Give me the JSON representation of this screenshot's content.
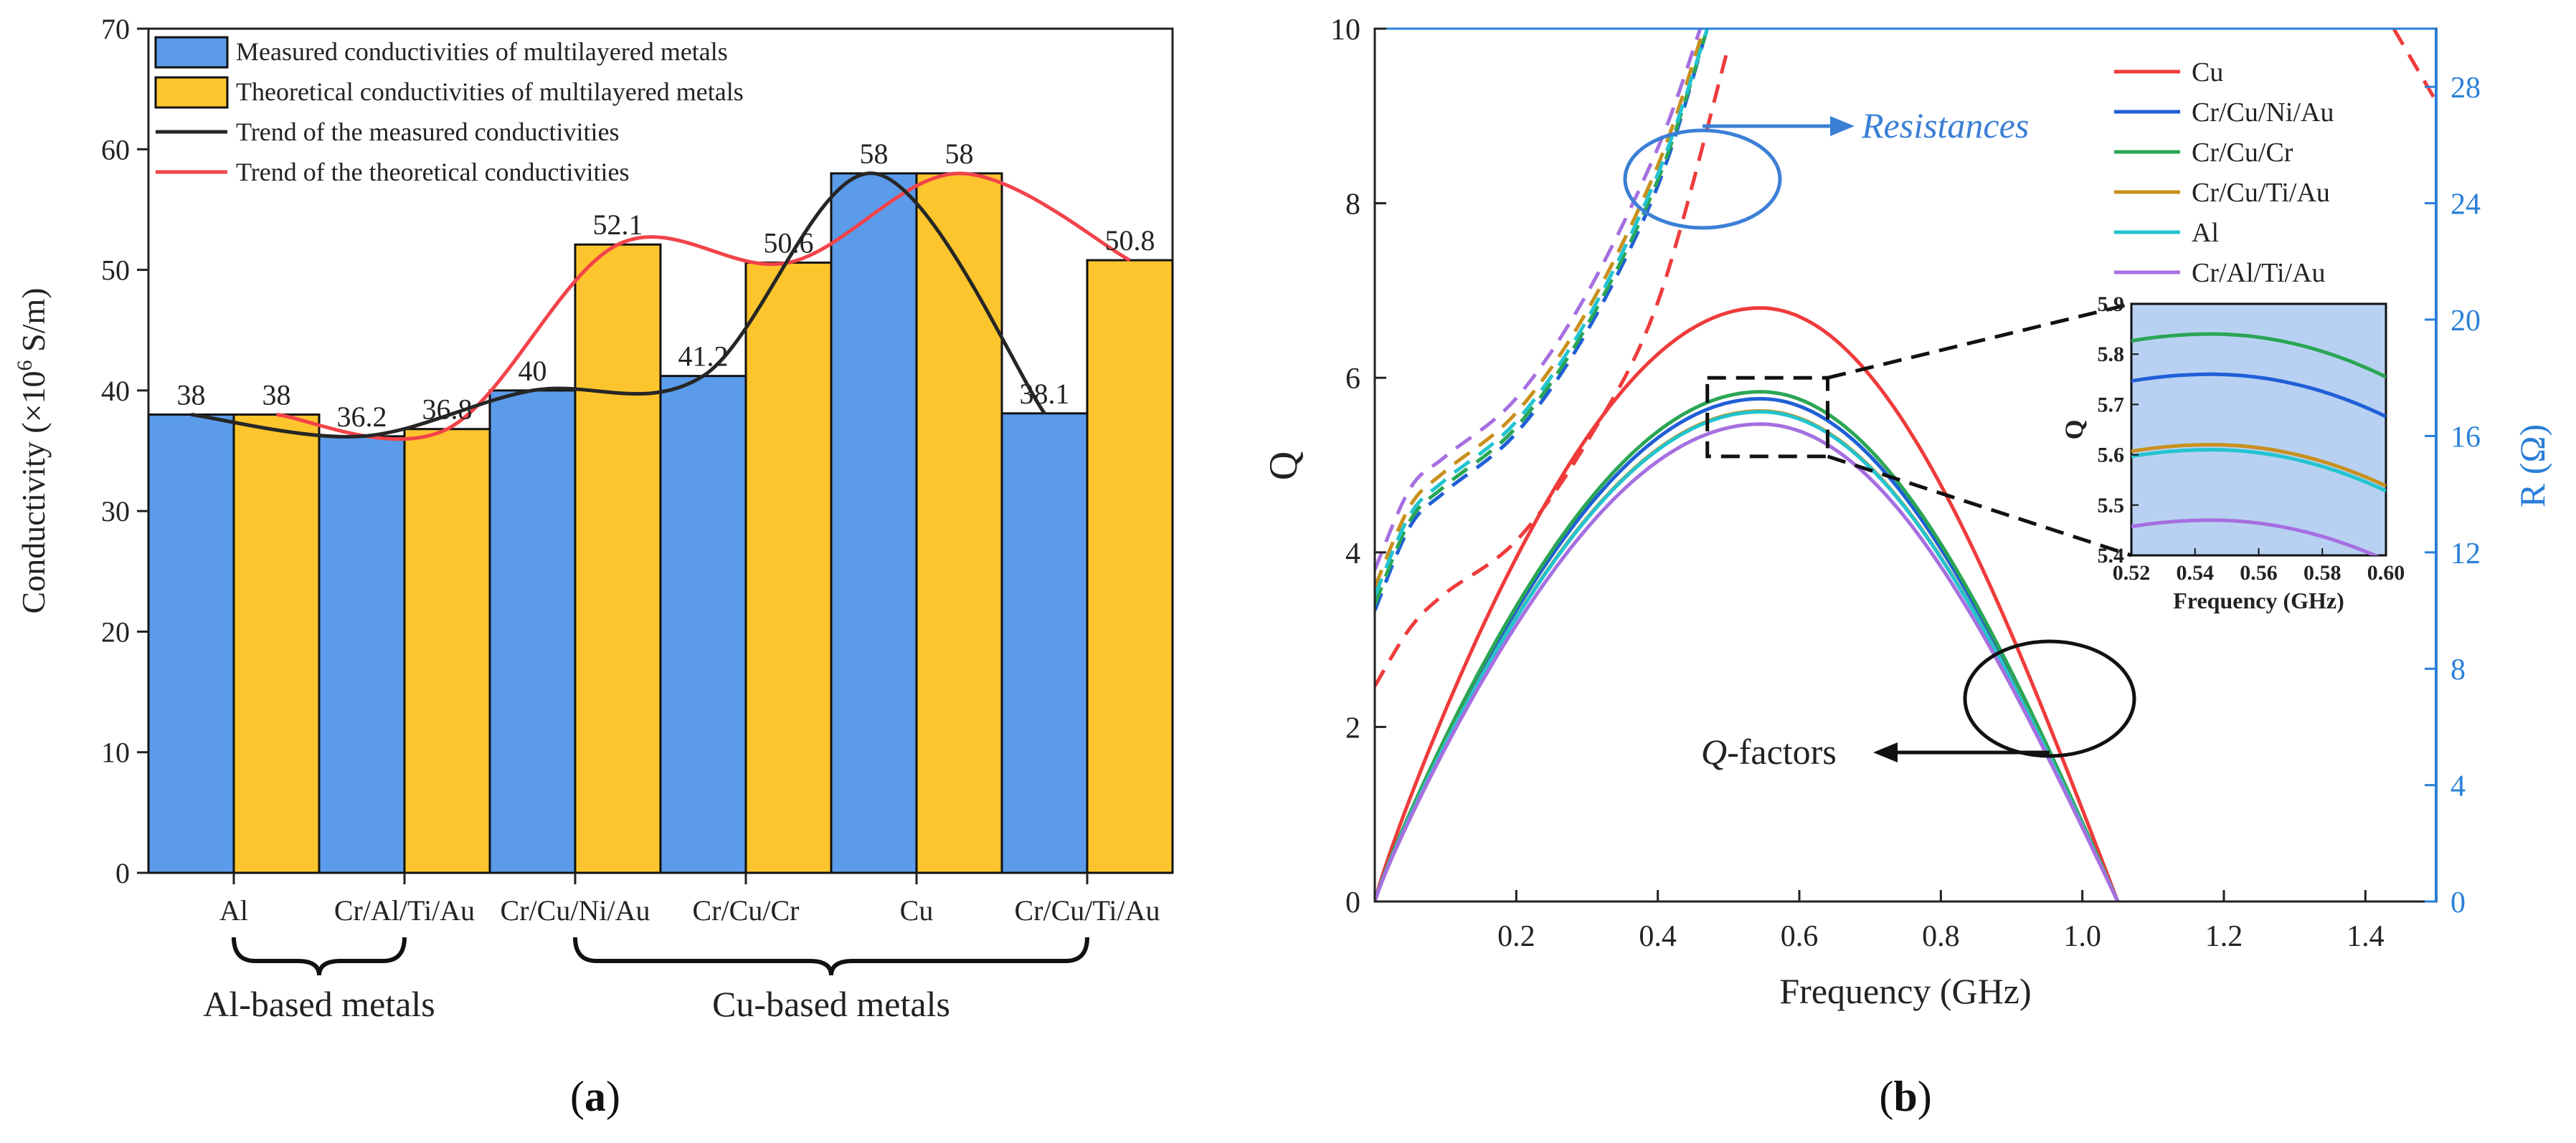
{
  "panel_labels": {
    "a": "a",
    "b": "b"
  },
  "colors": {
    "measured": "#5b9bea",
    "theoretical": "#fdc52d",
    "trend_measured": "#262626",
    "trend_theoretical": "#f2434a",
    "right_axis": "#2a7fd8",
    "annotation": "#3b7fd6",
    "inset_bg": "#b8d1f2"
  },
  "chart_data": [
    {
      "id": "a",
      "type": "bar",
      "categories": [
        "Al",
        "Cr/Al/Ti/Au",
        "Cr/Cu/Ni/Au",
        "Cr/Cu/Cr",
        "Cu",
        "Cr/Cu/Ti/Au"
      ],
      "series": [
        {
          "name": "Measured conductivities of multilayered metals",
          "values": [
            38,
            36.2,
            40,
            41.2,
            58,
            38.1
          ]
        },
        {
          "name": "Theoretical conductivities of multilayered metals",
          "values": [
            38,
            36.8,
            52.1,
            50.6,
            58,
            50.8
          ]
        }
      ],
      "trend_lines": [
        {
          "name": "Trend of the measured conductivities",
          "of": "measured"
        },
        {
          "name": "Trend of the theoretical conductivities",
          "of": "theoretical"
        }
      ],
      "data_labels": {
        "measured": [
          "38",
          "36.2",
          "40",
          "41.2",
          "58",
          "38.1"
        ],
        "theoretical": [
          "38",
          "36.8",
          "52.1",
          "50.6",
          "58",
          "50.8"
        ]
      },
      "ylabel_main": "Conductivity (×10",
      "ylabel_sup": "6",
      "ylabel_rest": " S/m)",
      "ylim": [
        0,
        70
      ],
      "yticks": [
        0,
        10,
        20,
        30,
        40,
        50,
        60,
        70
      ],
      "groups": [
        {
          "label": "Al-based metals",
          "from": 0,
          "to": 1
        },
        {
          "label": "Cu-based metals",
          "from": 2,
          "to": 5
        }
      ],
      "legend_position": "top-left"
    },
    {
      "id": "b",
      "type": "line",
      "xlabel": "Frequency (GHz)",
      "ylabel_left": "Q",
      "ylabel_right": "R (Ω)",
      "xlim": [
        0,
        1.5
      ],
      "xticks": [
        0.2,
        0.4,
        0.6,
        0.8,
        1.0,
        1.2,
        1.4
      ],
      "xtick_labels": [
        "0.2",
        "0.4",
        "0.6",
        "0.8",
        "1.0",
        "1.2",
        "1.4"
      ],
      "ylim_left": [
        0,
        10
      ],
      "yticks_left": [
        0,
        2,
        4,
        6,
        8,
        10
      ],
      "ylim_right": [
        0,
        30
      ],
      "yticks_right": [
        0,
        4,
        8,
        12,
        16,
        20,
        24,
        28
      ],
      "q_curves": [
        {
          "name": "Cu",
          "color": "#ef3b3b",
          "peak_q": 6.8,
          "peak_f": 0.545,
          "end_f": 1.05
        },
        {
          "name": "Cr/Cu/Ni/Au",
          "color": "#1f5fd6",
          "peak_q": 5.76,
          "peak_f": 0.545,
          "end_f": 1.05
        },
        {
          "name": "Cr/Cu/Cr",
          "color": "#2aa654",
          "peak_q": 5.84,
          "peak_f": 0.545,
          "end_f": 1.05
        },
        {
          "name": "Cr/Cu/Ti/Au",
          "color": "#c8901e",
          "peak_q": 5.62,
          "peak_f": 0.545,
          "end_f": 1.05
        },
        {
          "name": "Al",
          "color": "#22c4cf",
          "peak_q": 5.61,
          "peak_f": 0.545,
          "end_f": 1.05
        },
        {
          "name": "Cr/Al/Ti/Au",
          "color": "#a66fe0",
          "peak_q": 5.47,
          "peak_f": 0.545,
          "end_f": 1.05
        }
      ],
      "resistance_curves": [
        {
          "name": "Cu",
          "points": [
            [
              0.0,
              7.4
            ],
            [
              0.05,
              9.4
            ],
            [
              0.1,
              10.6
            ],
            [
              0.2,
              12.4
            ],
            [
              0.3,
              15.8
            ],
            [
              0.4,
              20.6
            ],
            [
              0.5,
              29.4
            ]
          ],
          "tail": [
            [
              1.44,
              30.0
            ],
            [
              1.5,
              27.5
            ]
          ]
        },
        {
          "name": "Cr/Cu/Ni/Au",
          "points": [
            [
              0.0,
              10.0
            ],
            [
              0.05,
              12.9
            ],
            [
              0.1,
              14.1
            ],
            [
              0.2,
              16.1
            ],
            [
              0.3,
              19.6
            ],
            [
              0.4,
              24.6
            ],
            [
              0.47,
              30.0
            ]
          ]
        },
        {
          "name": "Cr/Cu/Cr",
          "points": [
            [
              0.0,
              10.2
            ],
            [
              0.05,
              13.1
            ],
            [
              0.1,
              14.3
            ],
            [
              0.2,
              16.3
            ],
            [
              0.3,
              19.8
            ],
            [
              0.4,
              24.8
            ],
            [
              0.47,
              30.0
            ]
          ]
        },
        {
          "name": "Cr/Cu/Ti/Au",
          "points": [
            [
              0.0,
              10.8
            ],
            [
              0.05,
              13.6
            ],
            [
              0.1,
              14.8
            ],
            [
              0.2,
              16.8
            ],
            [
              0.3,
              20.3
            ],
            [
              0.4,
              25.3
            ],
            [
              0.465,
              30.0
            ]
          ]
        },
        {
          "name": "Al",
          "points": [
            [
              0.0,
              10.5
            ],
            [
              0.05,
              13.3
            ],
            [
              0.1,
              14.5
            ],
            [
              0.2,
              16.5
            ],
            [
              0.3,
              20.0
            ],
            [
              0.4,
              25.0
            ],
            [
              0.47,
              30.0
            ]
          ]
        },
        {
          "name": "Cr/Al/Ti/Au",
          "points": [
            [
              0.0,
              11.4
            ],
            [
              0.05,
              14.2
            ],
            [
              0.1,
              15.3
            ],
            [
              0.2,
              17.3
            ],
            [
              0.3,
              20.9
            ],
            [
              0.4,
              25.9
            ],
            [
              0.46,
              30.0
            ]
          ]
        }
      ],
      "annotations": {
        "resistances": "Resistances",
        "q_factors_italic": "Q",
        "q_factors_rest": "-factors"
      },
      "zoom_box": {
        "x": [
          0.47,
          0.64
        ],
        "y": [
          5.1,
          6.0
        ]
      },
      "inset": {
        "xlabel": "Frequency (GHz)",
        "ylabel": "Q",
        "xlim": [
          0.52,
          0.6
        ],
        "xticks": [
          0.52,
          0.54,
          0.56,
          0.58,
          0.6
        ],
        "xtick_labels": [
          "0.52",
          "0.54",
          "0.56",
          "0.58",
          "0.60"
        ],
        "ylim": [
          5.4,
          5.9
        ],
        "yticks": [
          5.4,
          5.5,
          5.6,
          5.7,
          5.8,
          5.9
        ],
        "ytick_labels": [
          "5.4",
          "5.5",
          "5.6",
          "5.7",
          "5.8",
          "5.9"
        ]
      },
      "legend_position": "top-right"
    }
  ]
}
